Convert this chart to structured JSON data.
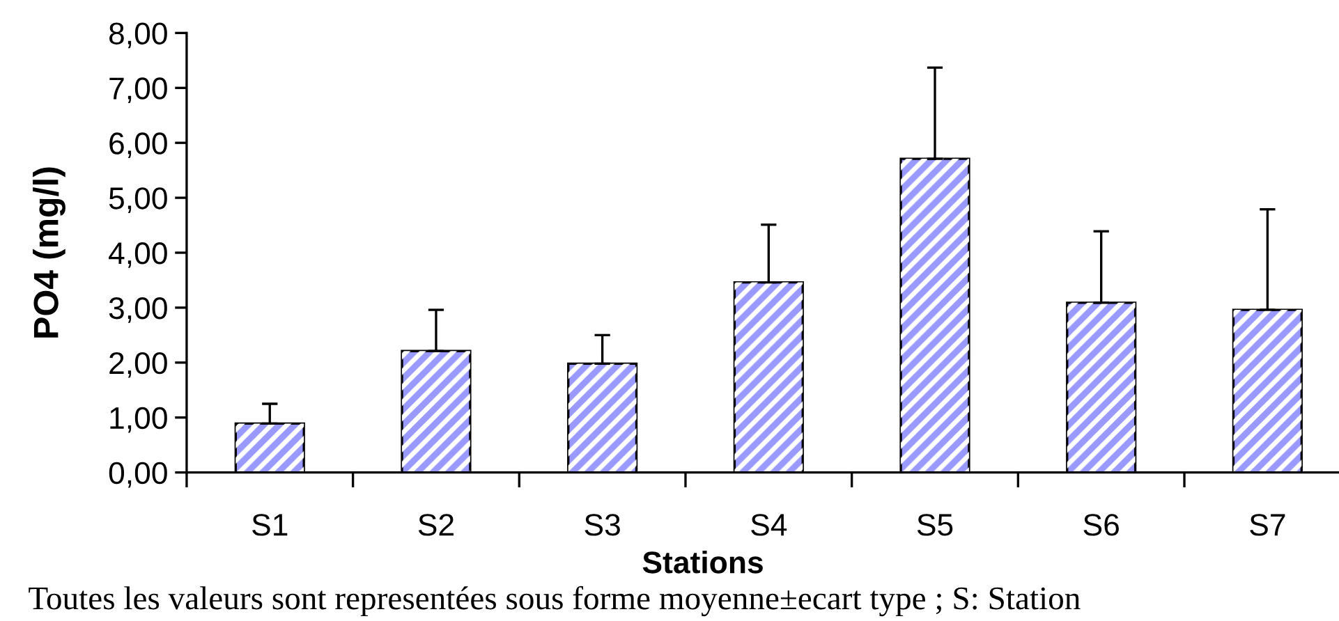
{
  "chart_data": {
    "type": "bar",
    "categories": [
      "S1",
      "S2",
      "S3",
      "S4",
      "S5",
      "S6",
      "S7"
    ],
    "values": [
      0.89,
      2.21,
      1.98,
      3.46,
      5.71,
      3.09,
      2.96
    ],
    "errors": [
      [
        0.89,
        1.25
      ],
      [
        2.21,
        2.96
      ],
      [
        1.98,
        2.5
      ],
      [
        3.46,
        4.51
      ],
      [
        5.71,
        7.37
      ],
      [
        3.09,
        4.39
      ],
      [
        2.96,
        4.79
      ]
    ],
    "color": "#9999ff",
    "xlabel": "Stations",
    "ylabel": "PO4 (mg/l)",
    "ylim": [
      0,
      8
    ],
    "yticks": [
      {
        "value": 0,
        "label": "0,00"
      },
      {
        "value": 1,
        "label": "1,00"
      },
      {
        "value": 2,
        "label": "2,00"
      },
      {
        "value": 3,
        "label": "3,00"
      },
      {
        "value": 4,
        "label": "4,00"
      },
      {
        "value": 5,
        "label": "5,00"
      },
      {
        "value": 6,
        "label": "6,00"
      },
      {
        "value": 7,
        "label": "7,00"
      },
      {
        "value": 8,
        "label": "8,00"
      }
    ],
    "annotations": [
      "Toutes les valeurs sont representées sous forme moyenne±ecart type ; S: Station"
    ]
  }
}
